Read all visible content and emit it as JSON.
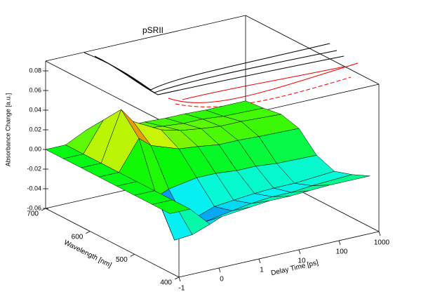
{
  "chart_data": {
    "type": "surface",
    "title": "pSRII",
    "xlabel": "Delay Time [ps]",
    "ylabel": "Wavelength [nm]",
    "zlabel": "Absorbance Change [a.u.]",
    "x": [
      -1,
      -0.5,
      0,
      0.3,
      1,
      3,
      10,
      30,
      100,
      1000
    ],
    "y": [
      420,
      460,
      500,
      540,
      580,
      620,
      660,
      700
    ],
    "values": [
      [
        0,
        0,
        -0.02,
        -0.015,
        -0.012,
        -0.01,
        -0.01,
        -0.009,
        -0.008,
        -0.008
      ],
      [
        0,
        0,
        -0.04,
        -0.03,
        -0.025,
        -0.022,
        -0.02,
        -0.02,
        -0.018,
        -0.016
      ],
      [
        0,
        0,
        -0.055,
        -0.04,
        -0.03,
        -0.028,
        -0.026,
        -0.025,
        -0.025,
        -0.022
      ],
      [
        0,
        0,
        -0.02,
        -0.015,
        -0.01,
        -0.01,
        -0.012,
        -0.012,
        -0.014,
        -0.015
      ],
      [
        0,
        0,
        0.03,
        0.02,
        0.01,
        0.008,
        0.005,
        0.005,
        0.004,
        0.003
      ],
      [
        0,
        0,
        0.05,
        0.035,
        0.02,
        0.015,
        0.012,
        0.01,
        0.01,
        0.008
      ],
      [
        0,
        0,
        0.03,
        0.02,
        0.012,
        0.01,
        0.008,
        0.008,
        0.006,
        0.005
      ],
      [
        0,
        0,
        0.01,
        0.01,
        0.005,
        0.005,
        0.004,
        0.004,
        0.003,
        0.003
      ]
    ],
    "xlim": [
      -1,
      1000
    ],
    "xticks": [
      -1,
      0,
      1,
      10,
      100,
      1000
    ],
    "ylim": [
      400,
      700
    ],
    "yticks": [
      400,
      500,
      600,
      700
    ],
    "zlim": [
      -0.06,
      0.09
    ],
    "zticks": [
      -0.06,
      -0.04,
      -0.02,
      {
        "value": 0,
        "label": "0.00"
      },
      0.02,
      0.04,
      0.06,
      0.08
    ]
  }
}
